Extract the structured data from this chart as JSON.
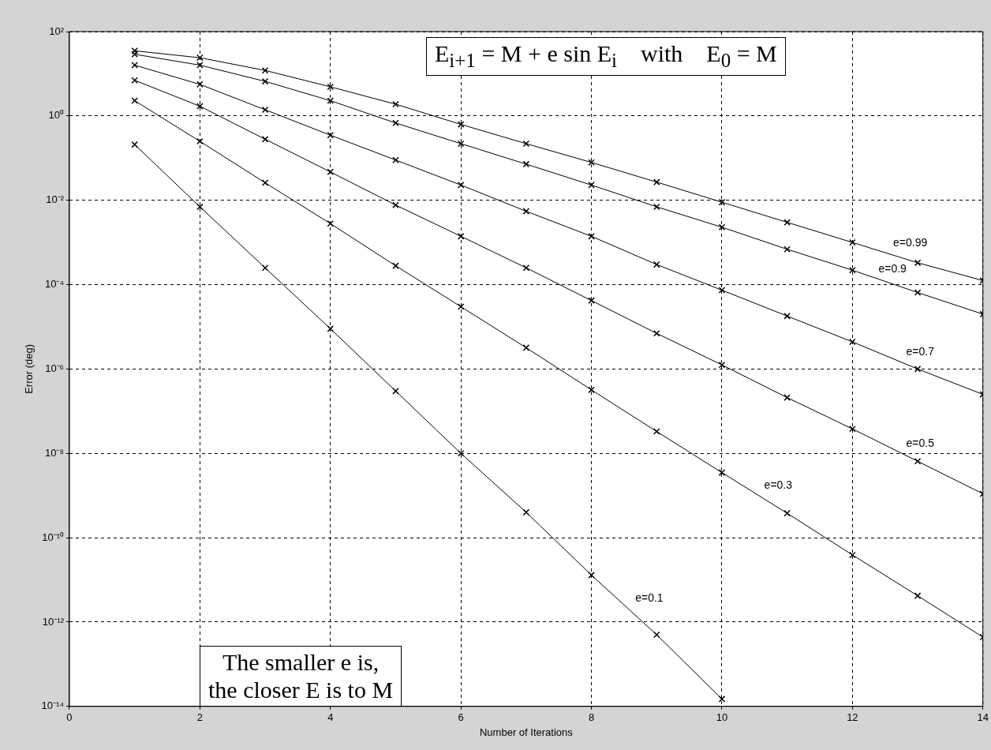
{
  "chart_data": {
    "type": "line",
    "xlabel": "Number of Iterations",
    "ylabel": "Error (deg)",
    "x": [
      1,
      2,
      3,
      4,
      5,
      6,
      7,
      8,
      9,
      10,
      11,
      12,
      13,
      14
    ],
    "series": [
      {
        "name": "e=0.1",
        "color": "#000000",
        "values": [
          0.21,
          0.007,
          0.00025,
          9e-06,
          3e-07,
          1e-08,
          4e-10,
          1.3e-11,
          5e-13,
          1.5e-14,
          null,
          null,
          null,
          null
        ]
      },
      {
        "name": "e=0.3",
        "color": "#000000",
        "values": [
          2.3,
          0.25,
          0.026,
          0.0028,
          0.00028,
          3e-05,
          3.2e-06,
          3.2e-07,
          3.3e-08,
          3.5e-09,
          3.8e-10,
          3.9e-11,
          4.2e-12,
          4.4e-13
        ]
      },
      {
        "name": "e=0.5",
        "color": "#000000",
        "values": [
          7,
          1.7,
          0.28,
          0.047,
          0.0077,
          0.0014,
          0.00025,
          4.2e-05,
          7e-06,
          1.25e-06,
          2.1e-07,
          3.8e-08,
          6.5e-09,
          1.1e-09
        ]
      },
      {
        "name": "e=0.7",
        "color": "#000000",
        "values": [
          16,
          5.6,
          1.4,
          0.35,
          0.09,
          0.023,
          0.0055,
          0.0014,
          0.0003,
          7.4e-05,
          1.8e-05,
          4.4e-06,
          1e-06,
          2.5e-07
        ]
      },
      {
        "name": "e=0.9",
        "color": "#000000",
        "values": [
          29,
          16,
          6.6,
          2.3,
          0.68,
          0.22,
          0.072,
          0.023,
          0.007,
          0.0023,
          0.00069,
          0.00022,
          6.5e-05,
          2e-05
        ]
      },
      {
        "name": "e=0.99",
        "color": "#000000",
        "values": [
          35,
          24,
          12,
          4.9,
          1.9,
          0.63,
          0.22,
          0.079,
          0.027,
          0.009,
          0.003,
          0.001,
          0.00033,
          0.000125
        ]
      }
    ],
    "xlim": [
      0,
      14
    ],
    "xticks": [
      0,
      2,
      4,
      6,
      8,
      10,
      12,
      14
    ],
    "ylim": [
      1e-14,
      100
    ],
    "yticks": [
      {
        "value": 100,
        "label": "10²"
      },
      {
        "value": 1,
        "label": "10⁰"
      },
      {
        "value": 0.01,
        "label": "10⁻²"
      },
      {
        "value": 0.0001,
        "label": "10⁻⁴"
      },
      {
        "value": 1e-06,
        "label": "10⁻⁶"
      },
      {
        "value": 1e-08,
        "label": "10⁻⁸"
      },
      {
        "value": 1e-10,
        "label": "10⁻¹⁰"
      },
      {
        "value": 1e-12,
        "label": "10⁻¹²"
      },
      {
        "value": 1e-14,
        "label": "10⁻¹⁴"
      }
    ],
    "log": "y",
    "grid": true,
    "legend": false,
    "marker": "cross",
    "line_style": "solid",
    "annotations": [
      "E$_{i+1}$ = M + e sin E$_{i}$    with    E$_{0}$ = M",
      "The smaller e is,\nthe closer E is to M"
    ]
  }
}
